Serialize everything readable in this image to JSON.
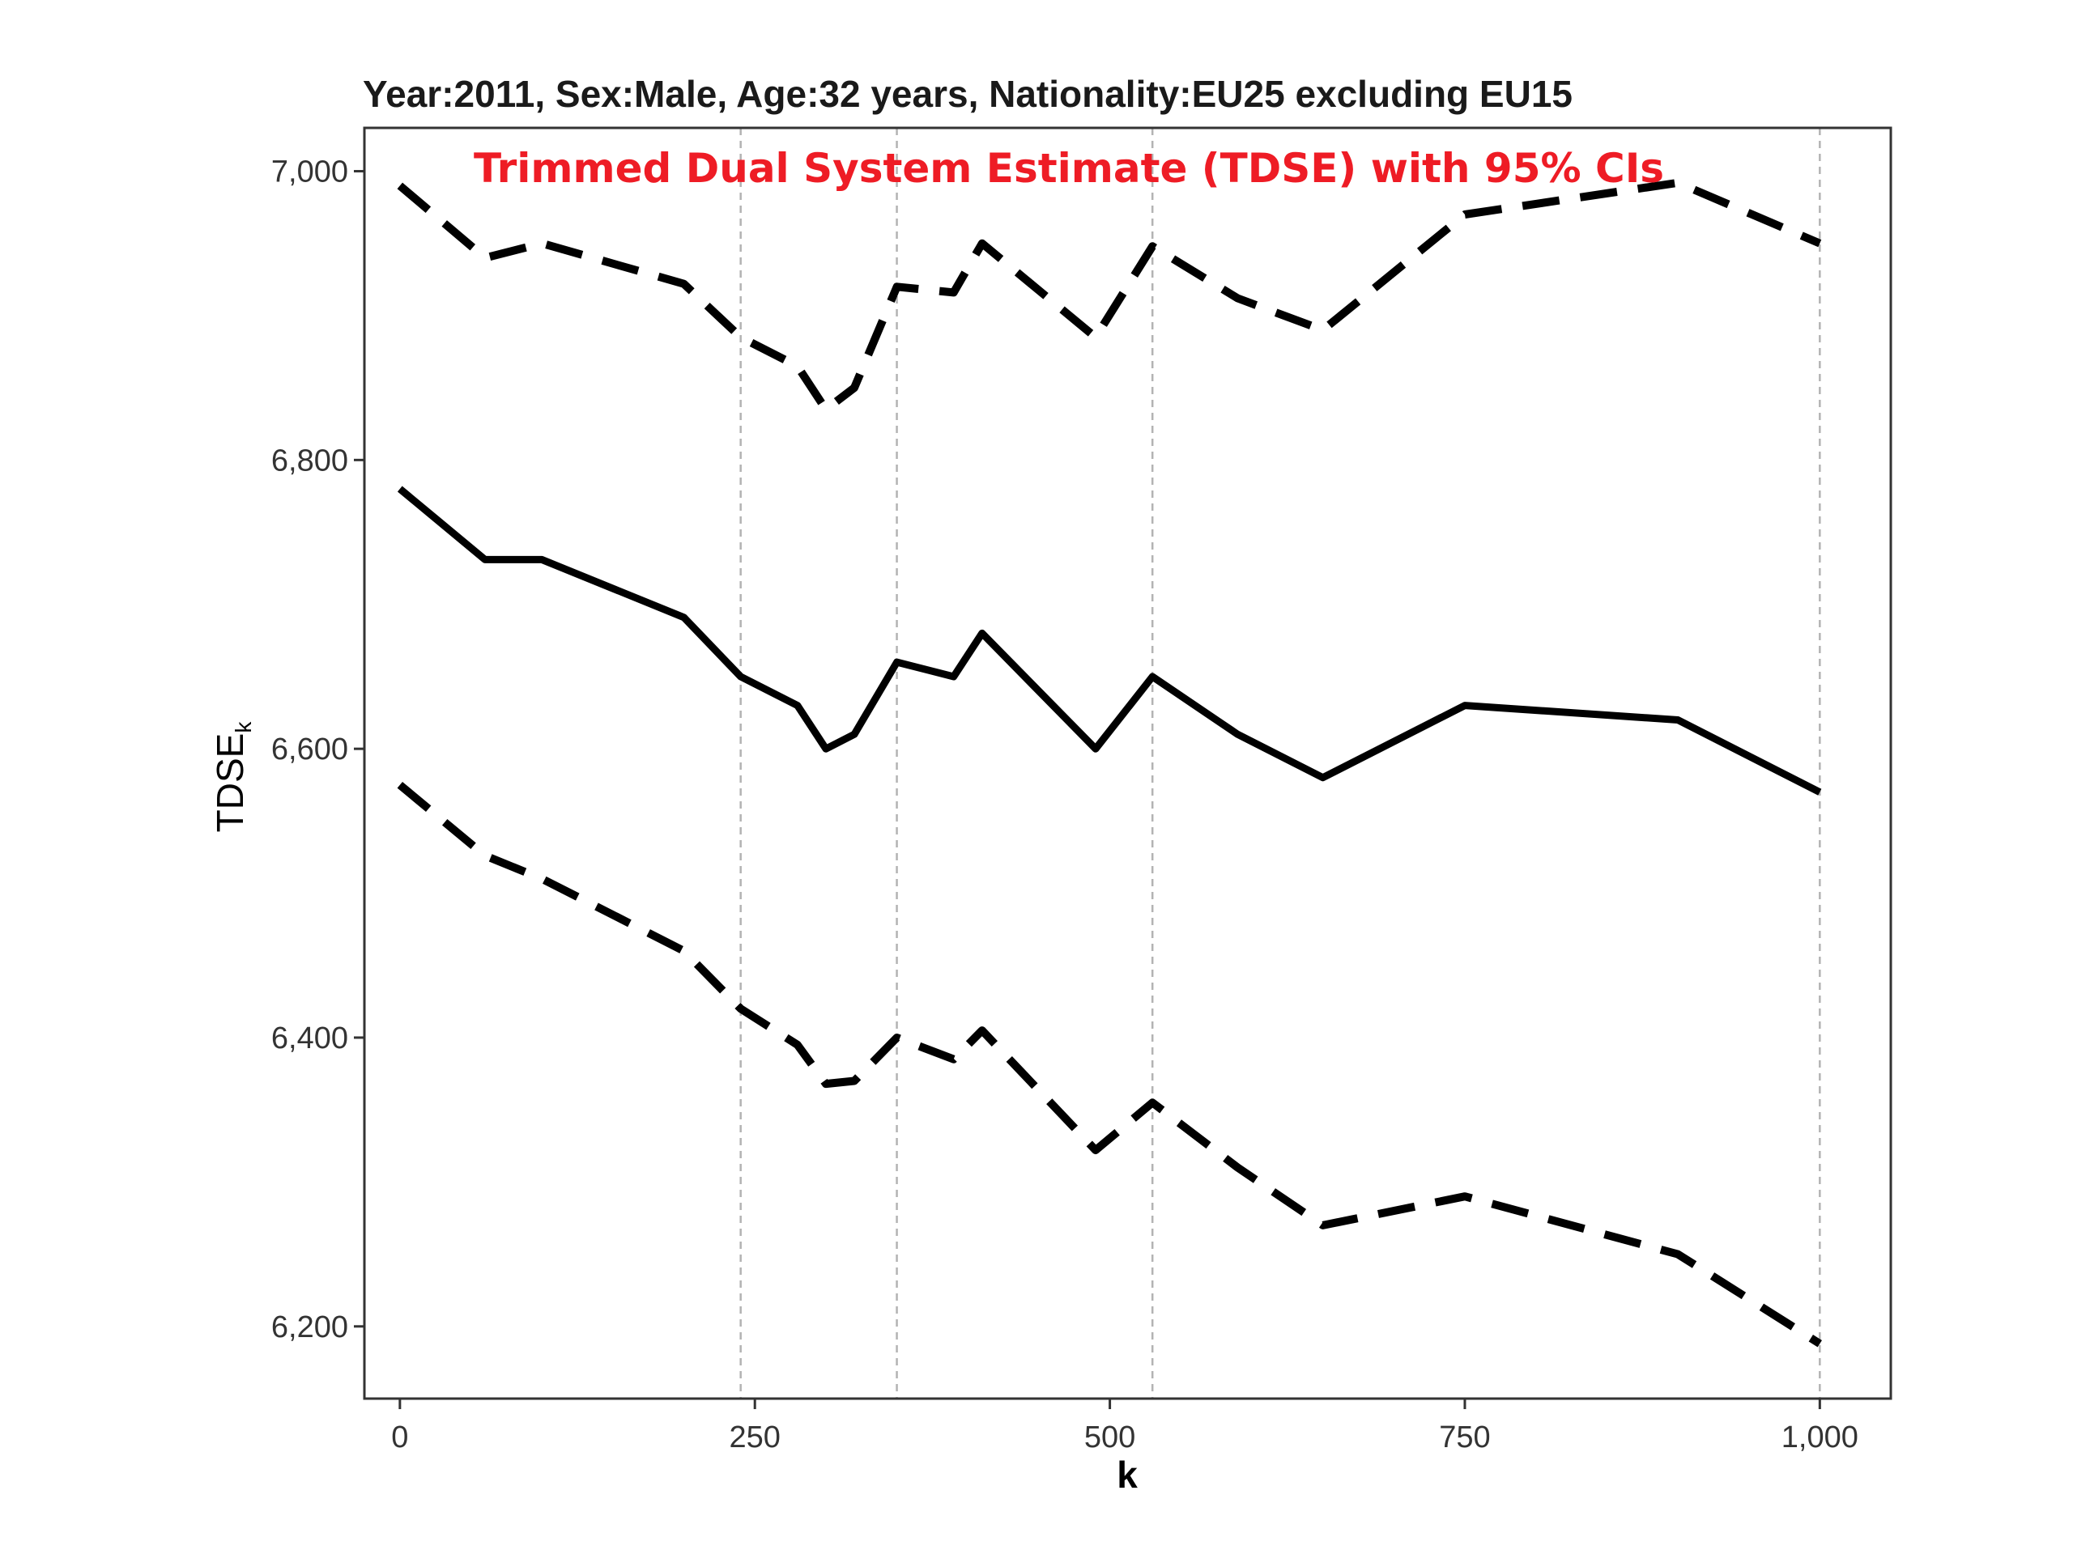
{
  "chart_data": {
    "type": "line",
    "title": "Year:2011, Sex:Male, Age:32 years, Nationality:EU25 excluding EU15",
    "annotation": "Trimmed Dual System Estimate (TDSE) with 95% CIs",
    "xlabel": "k",
    "ylabel_main": "TDSE",
    "ylabel_sub": "k",
    "xlim": [
      -25,
      1050
    ],
    "ylim": [
      6150,
      7030
    ],
    "xticks": [
      0,
      250,
      500,
      750,
      1000
    ],
    "xtick_labels": [
      "0",
      "250",
      "500",
      "750",
      "1,000"
    ],
    "yticks": [
      6200,
      6400,
      6600,
      6800,
      7000
    ],
    "ytick_labels": [
      "6,200",
      "6,400",
      "6,600",
      "6,800",
      "7,000"
    ],
    "vlines": [
      240,
      350,
      530,
      1000
    ],
    "grid": false,
    "colors": {
      "annotation": "#ee1c25",
      "line": "#000000",
      "vline": "#b3b3b3"
    },
    "series": [
      {
        "style": "solid",
        "x": [
          0,
          60,
          100,
          200,
          240,
          280,
          300,
          320,
          350,
          390,
          410,
          490,
          530,
          590,
          650,
          750,
          900,
          1000
        ],
        "y": [
          6780,
          6731,
          6731,
          6691,
          6650,
          6630,
          6600,
          6610,
          6660,
          6650,
          6680,
          6600,
          6650,
          6610,
          6580,
          6630,
          6620,
          6570
        ]
      },
      {
        "style": "dashed",
        "x": [
          0,
          60,
          100,
          200,
          240,
          280,
          300,
          320,
          350,
          390,
          410,
          490,
          530,
          590,
          650,
          750,
          900,
          1000
        ],
        "y": [
          6990,
          6940,
          6950,
          6922,
          6885,
          6865,
          6835,
          6850,
          6920,
          6916,
          6950,
          6885,
          6948,
          6912,
          6890,
          6970,
          6992,
          6950
        ]
      },
      {
        "style": "dashed",
        "x": [
          0,
          60,
          100,
          200,
          240,
          280,
          300,
          320,
          350,
          390,
          410,
          490,
          530,
          590,
          650,
          750,
          900,
          1000
        ],
        "y": [
          6575,
          6526,
          6510,
          6460,
          6420,
          6395,
          6368,
          6370,
          6400,
          6385,
          6405,
          6322,
          6355,
          6310,
          6270,
          6290,
          6250,
          6188
        ]
      }
    ]
  }
}
